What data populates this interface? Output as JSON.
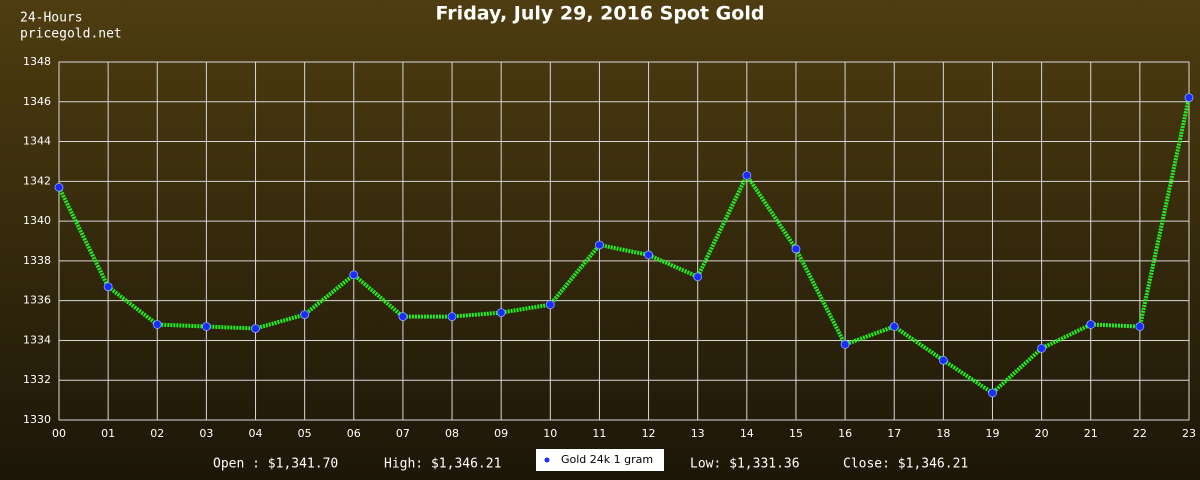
{
  "chart_data": {
    "type": "line",
    "title": "Friday, July 29, 2016 Spot Gold",
    "corner_label": [
      "24-Hours",
      "pricegold.net"
    ],
    "categories": [
      "00",
      "01",
      "02",
      "03",
      "04",
      "05",
      "06",
      "07",
      "08",
      "09",
      "10",
      "11",
      "12",
      "13",
      "14",
      "15",
      "16",
      "17",
      "18",
      "19",
      "20",
      "21",
      "22",
      "23"
    ],
    "series": [
      {
        "name": "Gold 24k 1 gram",
        "color": "#22ee22",
        "values": [
          1341.7,
          1336.7,
          1334.8,
          1334.7,
          1334.6,
          1335.3,
          1337.3,
          1335.2,
          1335.2,
          1335.4,
          1335.8,
          1338.8,
          1338.3,
          1337.2,
          1342.3,
          1338.6,
          1333.8,
          1334.7,
          1333.0,
          1331.36,
          1333.6,
          1334.8,
          1334.7,
          1346.21
        ]
      }
    ],
    "marker_color": "#1a2cff",
    "ylim": [
      1330,
      1348
    ],
    "yticks": [
      1330,
      1332,
      1334,
      1336,
      1338,
      1340,
      1342,
      1344,
      1346,
      1348
    ],
    "grid": true,
    "legend": "bottom",
    "summary": [
      "Open : $1,341.70",
      "High: $1,346.21",
      "Low: $1,331.36",
      "Close: $1,346.21"
    ]
  }
}
